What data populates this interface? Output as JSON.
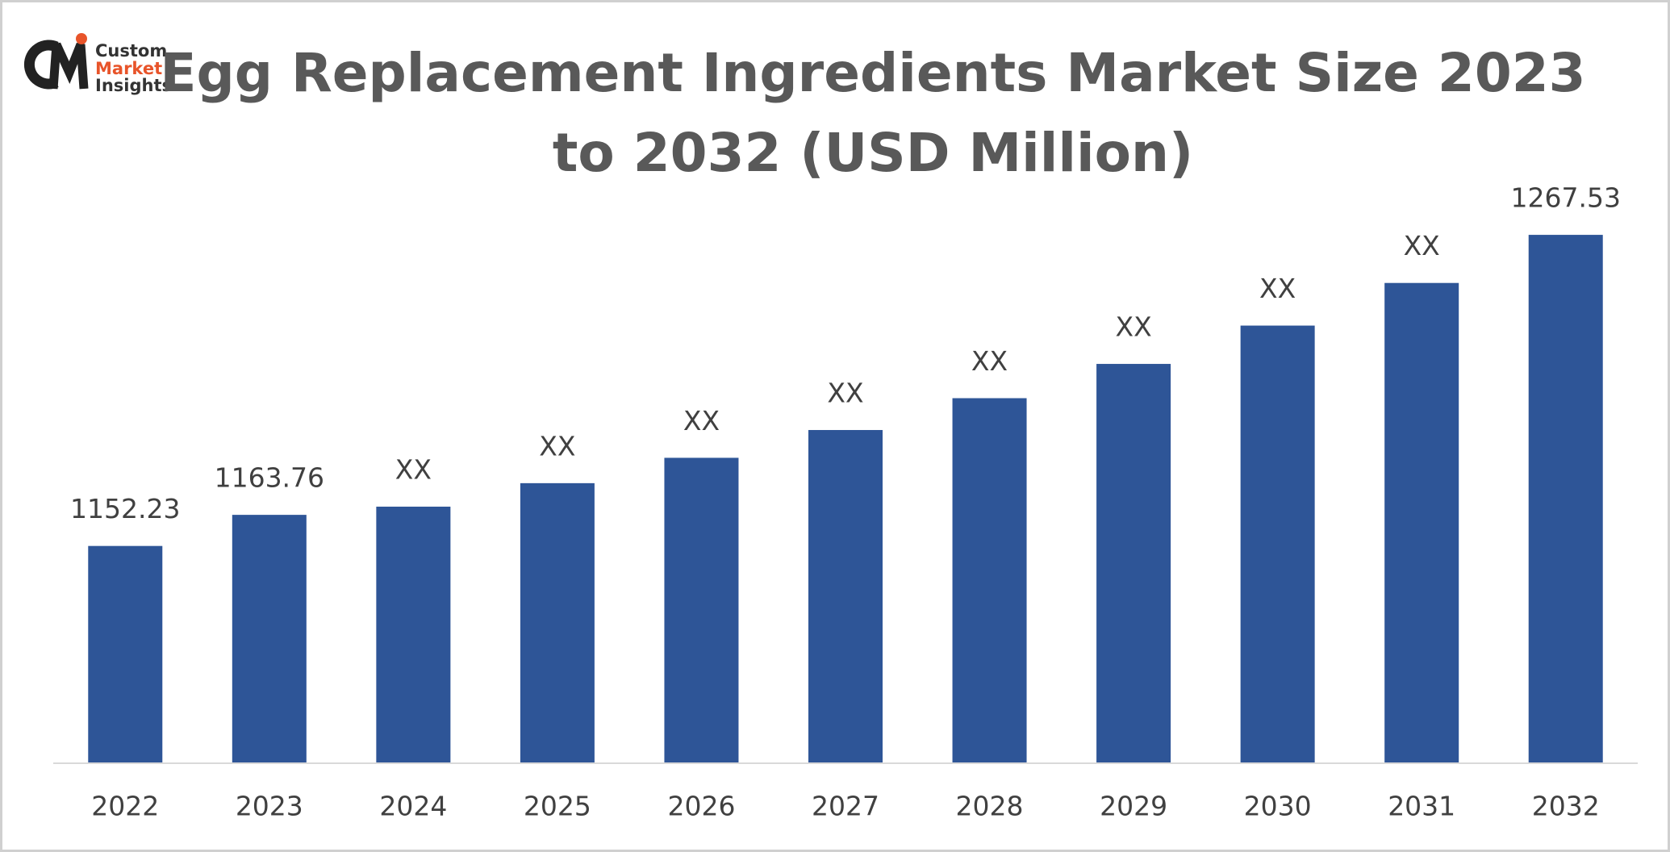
{
  "logo": {
    "lines": [
      "Custom",
      "Market",
      "Insights"
    ]
  },
  "chart_data": {
    "type": "bar",
    "title": [
      "Egg Replacement Ingredients Market Size 2023",
      "to 2032 (USD Million)"
    ],
    "categories": [
      "2022",
      "2023",
      "2024",
      "2025",
      "2026",
      "2027",
      "2028",
      "2029",
      "2030",
      "2031",
      "2032"
    ],
    "values": [
      1152.23,
      1163.76,
      1166.8,
      1175.5,
      1184.9,
      1195.2,
      1207.0,
      1219.7,
      1233.9,
      1249.7,
      1267.53
    ],
    "value_labels": [
      "1152.23",
      "1163.76",
      "XX",
      "XX",
      "XX",
      "XX",
      "XX",
      "XX",
      "XX",
      "XX",
      "1267.53"
    ],
    "color": "#2e5597",
    "ylim": [
      1072,
      1284
    ]
  }
}
